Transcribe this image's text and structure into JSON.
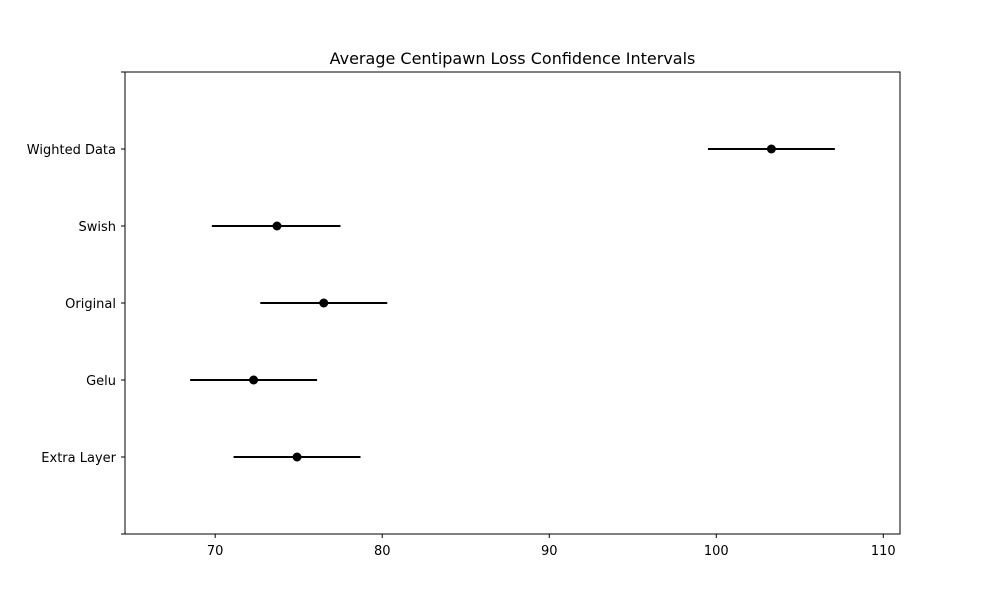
{
  "chart_data": {
    "type": "errorbar",
    "title": "Average Centipawn Loss Confidence Intervals",
    "xlabel": "",
    "ylabel": "",
    "xlim": [
      64.6,
      111.0
    ],
    "x_ticks": [
      70,
      80,
      90,
      100,
      110
    ],
    "categories": [
      "Extra Layer",
      "Gelu",
      "Original",
      "Swish",
      "Wighted Data"
    ],
    "points": [
      {
        "category": "Extra Layer",
        "mean": 74.9,
        "low": 71.1,
        "high": 78.7
      },
      {
        "category": "Gelu",
        "mean": 72.3,
        "low": 68.5,
        "high": 76.1
      },
      {
        "category": "Original",
        "mean": 76.5,
        "low": 72.7,
        "high": 80.3
      },
      {
        "category": "Swish",
        "mean": 73.7,
        "low": 69.8,
        "high": 77.5
      },
      {
        "category": "Wighted Data",
        "mean": 103.3,
        "low": 99.5,
        "high": 107.1
      }
    ],
    "grid": false,
    "colors": {
      "marker": "#000000",
      "errorbar": "#000000",
      "axes": "#000000"
    }
  }
}
